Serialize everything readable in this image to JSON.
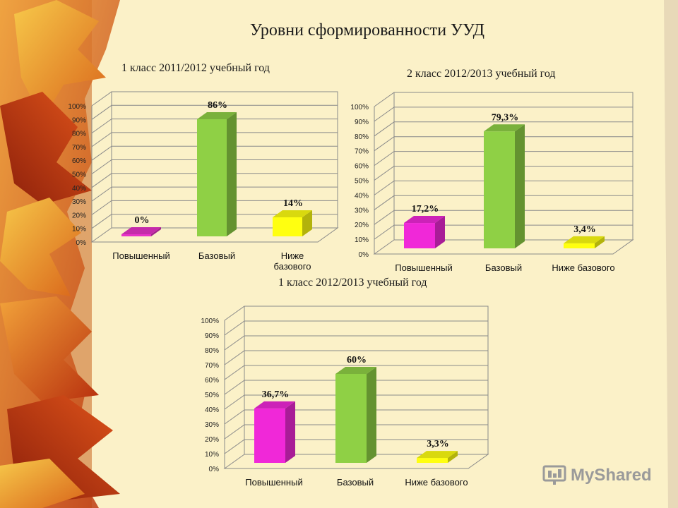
{
  "title": "Уровни сформированности УУД",
  "watermark": "MyShared",
  "chart_data": [
    {
      "type": "bar",
      "title": "1 класс 2011/2012 учебный год",
      "categories": [
        "Повышенный",
        "Базовый",
        "Ниже базового"
      ],
      "values": [
        0,
        86,
        14
      ],
      "value_labels": [
        "0%",
        "86%",
        "14%"
      ],
      "colors": [
        "#e832c8",
        "#8fd045",
        "#ffff10"
      ],
      "yticks": [
        "0%",
        "10%",
        "20%",
        "30%",
        "40%",
        "50%",
        "60%",
        "70%",
        "80%",
        "90%",
        "100%"
      ],
      "ylim": [
        0,
        100
      ],
      "grid": true,
      "legend": "none"
    },
    {
      "type": "bar",
      "title": "2 класс 2012/2013 учебный год",
      "categories": [
        "Повышенный",
        "Базовый",
        "Ниже базового"
      ],
      "values": [
        17.2,
        79.3,
        3.4
      ],
      "value_labels": [
        "17,2%",
        "79,3%",
        "3,4%"
      ],
      "colors": [
        "#f028d8",
        "#8fd045",
        "#ffff10"
      ],
      "yticks": [
        "0%",
        "10%",
        "20%",
        "30%",
        "40%",
        "50%",
        "60%",
        "70%",
        "80%",
        "90%",
        "100%"
      ],
      "ylim": [
        0,
        100
      ],
      "grid": true,
      "legend": "none"
    },
    {
      "type": "bar",
      "title": "1 класс 2012/2013 учебный год",
      "categories": [
        "Повышенный",
        "Базовый",
        "Ниже базового"
      ],
      "values": [
        36.7,
        60,
        3.3
      ],
      "value_labels": [
        "36,7%",
        "60%",
        "3,3%"
      ],
      "colors": [
        "#f028d8",
        "#8fd045",
        "#ffff10"
      ],
      "yticks": [
        "0%",
        "10%",
        "20%",
        "30%",
        "40%",
        "50%",
        "60%",
        "70%",
        "80%",
        "90%",
        "100%"
      ],
      "ylim": [
        0,
        100
      ],
      "grid": true,
      "legend": "none"
    }
  ]
}
